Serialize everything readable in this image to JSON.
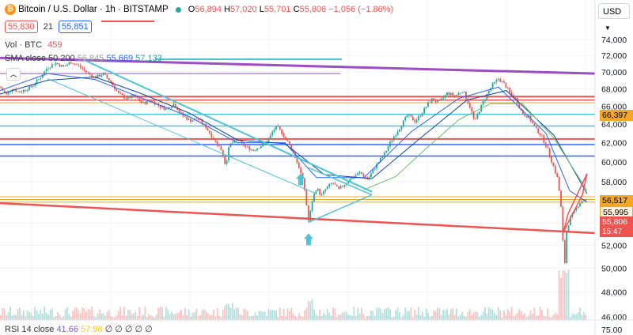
{
  "header": {
    "symbol_title": "Bitcoin / U.S. Dollar · 1h · BITSTAMP",
    "open_label": "O",
    "open": "56,894",
    "high_label": "H",
    "high": "57,020",
    "low_label": "L",
    "low": "55,701",
    "close_label": "C",
    "close": "55,806",
    "change": "−1,056 (−1.86%)",
    "sell_price": "55,830",
    "spread": "21",
    "buy_price": "55,851",
    "currency": "USD"
  },
  "indicators": {
    "vol_label": "Vol · BTC",
    "vol_value": "459",
    "sma_label": "SMA close 50 200",
    "sma_vals": [
      "56,845",
      "55,669",
      "57,133"
    ],
    "rsi_label": "RSI 14 close",
    "rsi_vals": [
      "41.66",
      "57.98"
    ],
    "rsi_suffix": "∅ ∅ ∅ ∅ ∅"
  },
  "price_tags": {
    "level_66397": "66,397",
    "level_56517": "56,517",
    "level_55995": "55,995",
    "last_price": "55,806",
    "countdown": "15:47"
  },
  "colors": {
    "up": "#26a69a",
    "down": "#ef5350",
    "sma_short": "#2962ff",
    "sma_mid": "#0d47a1",
    "sma_long": "#66bb6a",
    "purple": "#9c4dc4",
    "cyan": "#4dc3d8",
    "orange": "#f5a623"
  },
  "chart_data": {
    "type": "candlestick",
    "interval": "1h",
    "y_axis_ticks": [
      "74,000",
      "72,000",
      "70,000",
      "68,000",
      "66,000",
      "64,000",
      "62,000",
      "60,000",
      "58,000",
      "56,000",
      "54,000",
      "52,000",
      "50,000",
      "48,000",
      "46,000"
    ],
    "rsi_ticks": [
      "75.00"
    ],
    "ylim": [
      45600,
      75800
    ],
    "y_scale": "log",
    "price_path": [
      [
        0,
        68200
      ],
      [
        8,
        67300
      ],
      [
        16,
        68100
      ],
      [
        24,
        67600
      ],
      [
        32,
        67900
      ],
      [
        40,
        68300
      ],
      [
        50,
        69200
      ],
      [
        60,
        70500
      ],
      [
        70,
        71100
      ],
      [
        80,
        70600
      ],
      [
        90,
        71200
      ],
      [
        100,
        70700
      ],
      [
        110,
        69900
      ],
      [
        120,
        69300
      ],
      [
        130,
        69800
      ],
      [
        140,
        68800
      ],
      [
        150,
        67400
      ],
      [
        160,
        66900
      ],
      [
        170,
        67200
      ],
      [
        180,
        66300
      ],
      [
        190,
        66700
      ],
      [
        200,
        66100
      ],
      [
        210,
        65700
      ],
      [
        220,
        66300
      ],
      [
        230,
        65000
      ],
      [
        240,
        64400
      ],
      [
        250,
        64600
      ],
      [
        260,
        63700
      ],
      [
        270,
        62400
      ],
      [
        280,
        61200
      ],
      [
        285,
        59600
      ],
      [
        290,
        61800
      ],
      [
        300,
        62300
      ],
      [
        310,
        61600
      ],
      [
        320,
        61200
      ],
      [
        330,
        61700
      ],
      [
        340,
        62400
      ],
      [
        345,
        63300
      ],
      [
        350,
        63700
      ],
      [
        356,
        63100
      ],
      [
        362,
        62300
      ],
      [
        370,
        61100
      ],
      [
        378,
        59400
      ],
      [
        384,
        57800
      ],
      [
        390,
        54100
      ],
      [
        395,
        56300
      ],
      [
        400,
        57400
      ],
      [
        406,
        56600
      ],
      [
        412,
        57300
      ],
      [
        420,
        57900
      ],
      [
        428,
        57200
      ],
      [
        436,
        57800
      ],
      [
        445,
        58400
      ],
      [
        455,
        58900
      ],
      [
        465,
        58200
      ],
      [
        475,
        59600
      ],
      [
        485,
        60700
      ],
      [
        495,
        62300
      ],
      [
        505,
        63600
      ],
      [
        515,
        65000
      ],
      [
        525,
        64300
      ],
      [
        535,
        65500
      ],
      [
        545,
        66800
      ],
      [
        555,
        66400
      ],
      [
        565,
        67500
      ],
      [
        575,
        67200
      ],
      [
        585,
        67800
      ],
      [
        595,
        65700
      ],
      [
        600,
        64200
      ],
      [
        605,
        65400
      ],
      [
        615,
        67300
      ],
      [
        622,
        68400
      ],
      [
        630,
        69200
      ],
      [
        638,
        68500
      ],
      [
        645,
        67400
      ],
      [
        652,
        66800
      ],
      [
        660,
        65200
      ],
      [
        668,
        64800
      ],
      [
        676,
        63600
      ],
      [
        684,
        62800
      ],
      [
        692,
        61300
      ],
      [
        700,
        59400
      ],
      [
        705,
        58200
      ],
      [
        710,
        54800
      ],
      [
        713,
        49500
      ],
      [
        716,
        53200
      ],
      [
        720,
        54400
      ],
      [
        726,
        55100
      ],
      [
        732,
        55900
      ],
      [
        738,
        56300
      ],
      [
        742,
        55900
      ]
    ],
    "sma_fast": [
      [
        0,
        67800
      ],
      [
        60,
        69800
      ],
      [
        120,
        69100
      ],
      [
        180,
        66900
      ],
      [
        240,
        64800
      ],
      [
        300,
        62000
      ],
      [
        360,
        62000
      ],
      [
        400,
        58400
      ],
      [
        460,
        58400
      ],
      [
        520,
        63200
      ],
      [
        580,
        66900
      ],
      [
        630,
        68200
      ],
      [
        690,
        63000
      ],
      [
        720,
        57100
      ],
      [
        742,
        56000
      ]
    ],
    "sma_50": [
      [
        0,
        67400
      ],
      [
        60,
        69000
      ],
      [
        120,
        69400
      ],
      [
        180,
        67400
      ],
      [
        240,
        65200
      ],
      [
        300,
        62300
      ],
      [
        360,
        61900
      ],
      [
        410,
        58700
      ],
      [
        470,
        58300
      ],
      [
        530,
        62400
      ],
      [
        590,
        66700
      ],
      [
        640,
        67800
      ],
      [
        700,
        62800
      ],
      [
        742,
        56800
      ]
    ],
    "sma_200": [
      [
        460,
        57200
      ],
      [
        500,
        58500
      ],
      [
        540,
        61500
      ],
      [
        580,
        64500
      ],
      [
        620,
        66300
      ],
      [
        660,
        66300
      ],
      [
        700,
        62500
      ],
      [
        742,
        57100
      ]
    ],
    "horizontal_levels": [
      {
        "price": 69800,
        "color": "#9c4dc4",
        "x_from": 0,
        "x_to": 430,
        "width": 1
      },
      {
        "price": 67100,
        "color": "#ef5350",
        "x_from": 0,
        "x_to": 752,
        "width": 2
      },
      {
        "price": 66700,
        "color": "#ef5350",
        "x_from": 0,
        "x_to": 752,
        "width": 1.5
      },
      {
        "price": 66397,
        "color": "#f5a623",
        "x_from": 0,
        "x_to": 752,
        "width": 1
      },
      {
        "price": 65100,
        "color": "#4dc3d8",
        "x_from": 0,
        "x_to": 752,
        "width": 1.5
      },
      {
        "price": 63800,
        "color": "#4dc3d8",
        "x_from": 0,
        "x_to": 752,
        "width": 1.5
      },
      {
        "price": 62400,
        "color": "#ef5350",
        "x_from": 0,
        "x_to": 752,
        "width": 2
      },
      {
        "price": 61800,
        "color": "#2962ff",
        "x_from": 0,
        "x_to": 752,
        "width": 1.5
      },
      {
        "price": 60600,
        "color": "#2962ff",
        "x_from": 0,
        "x_to": 752,
        "width": 1.5
      },
      {
        "price": 56517,
        "color": "#f5a623",
        "x_from": 0,
        "x_to": 752,
        "width": 1
      },
      {
        "price": 56250,
        "color": "#f5a623",
        "x_from": 0,
        "x_to": 752,
        "width": 1
      },
      {
        "price": 55995,
        "color": "#f5a623",
        "x_from": 0,
        "x_to": 752,
        "width": 1
      }
    ],
    "trend_lines": [
      {
        "from": [
          0,
          71700
        ],
        "to": [
          752,
          69800
        ],
        "color": "#9c4dc4",
        "width": 3
      },
      {
        "from": [
          0,
          55900
        ],
        "to": [
          752,
          53100
        ],
        "color": "#ef5350",
        "width": 2.5
      },
      {
        "from": [
          105,
          71500
        ],
        "to": [
          470,
          57000
        ],
        "color": "#4dc3d8",
        "width": 2
      },
      {
        "from": [
          60,
          69200
        ],
        "to": [
          400,
          56800
        ],
        "color": "#4dc3d8",
        "width": 1
      },
      {
        "from": [
          390,
          59400
        ],
        "to": [
          470,
          56700
        ],
        "color": "#4dc3d8",
        "width": 1.5
      },
      {
        "from": [
          390,
          54100
        ],
        "to": [
          470,
          56700
        ],
        "color": "#4dc3d8",
        "width": 1.5
      },
      {
        "from": [
          712,
          53200
        ],
        "to": [
          736,
          56700
        ],
        "color": "#ef5350",
        "width": 1.5
      },
      {
        "from": [
          718,
          54900
        ],
        "to": [
          742,
          58800
        ],
        "color": "#ef5350",
        "width": 1.5
      },
      {
        "from": [
          712,
          53200
        ],
        "to": [
          718,
          54900
        ],
        "color": "#ef5350",
        "width": 1.5
      },
      {
        "from": [
          736,
          56700
        ],
        "to": [
          742,
          58800
        ],
        "color": "#ef5350",
        "width": 1.5
      }
    ],
    "arrows": [
      {
        "x": 380,
        "price": 58200,
        "direction": "up"
      },
      {
        "x": 390,
        "price": 52500,
        "direction": "up"
      }
    ],
    "overlay_lines": [
      {
        "price": 71900,
        "x_from": 0,
        "x_to": 195,
        "color": "#ef5350"
      },
      {
        "price": 72000,
        "x_from": 0,
        "x_to": 432,
        "color": "#4dc3d8"
      }
    ]
  }
}
